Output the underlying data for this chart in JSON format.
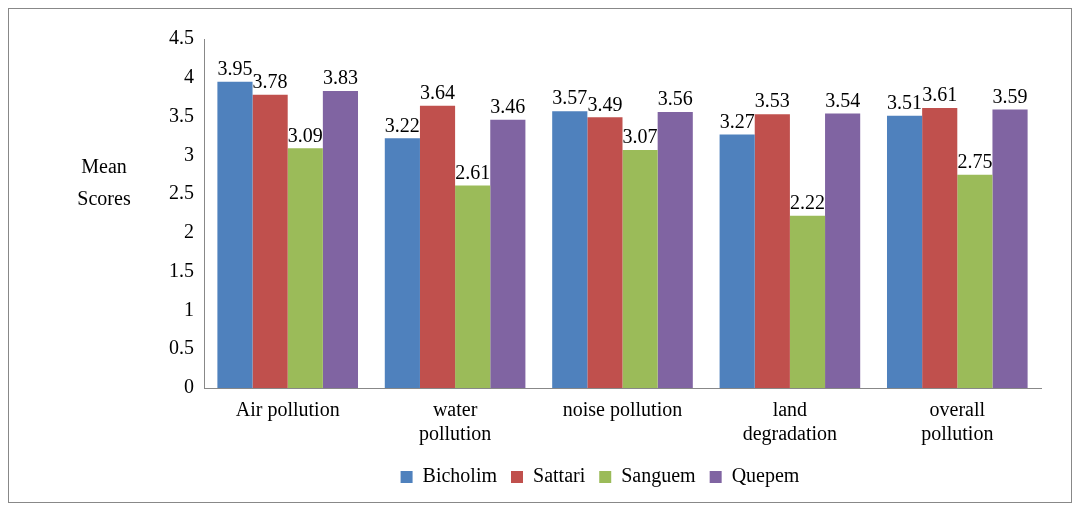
{
  "chart_data": {
    "type": "bar",
    "ylabel": "Mean Scores",
    "categories": [
      "Air pollution",
      "water pollution",
      "noise pollution",
      "land degradation",
      "overall pollution"
    ],
    "series": [
      {
        "name": "Bicholim",
        "color": "#4f81bd",
        "values": [
          3.95,
          3.22,
          3.57,
          3.27,
          3.51
        ]
      },
      {
        "name": "Sattari",
        "color": "#c0504d",
        "values": [
          3.78,
          3.64,
          3.49,
          3.53,
          3.61
        ]
      },
      {
        "name": "Sanguem",
        "color": "#9bbb59",
        "values": [
          3.09,
          2.61,
          3.07,
          2.22,
          2.75
        ]
      },
      {
        "name": "Quepem",
        "color": "#8064a2",
        "values": [
          3.83,
          3.46,
          3.56,
          3.54,
          3.59
        ]
      }
    ],
    "ylim": [
      0,
      4.5
    ],
    "yticks": [
      0,
      0.5,
      1,
      1.5,
      2,
      2.5,
      3,
      3.5,
      4,
      4.5
    ],
    "grid": false,
    "legend": "bottom",
    "data_labels": true
  }
}
